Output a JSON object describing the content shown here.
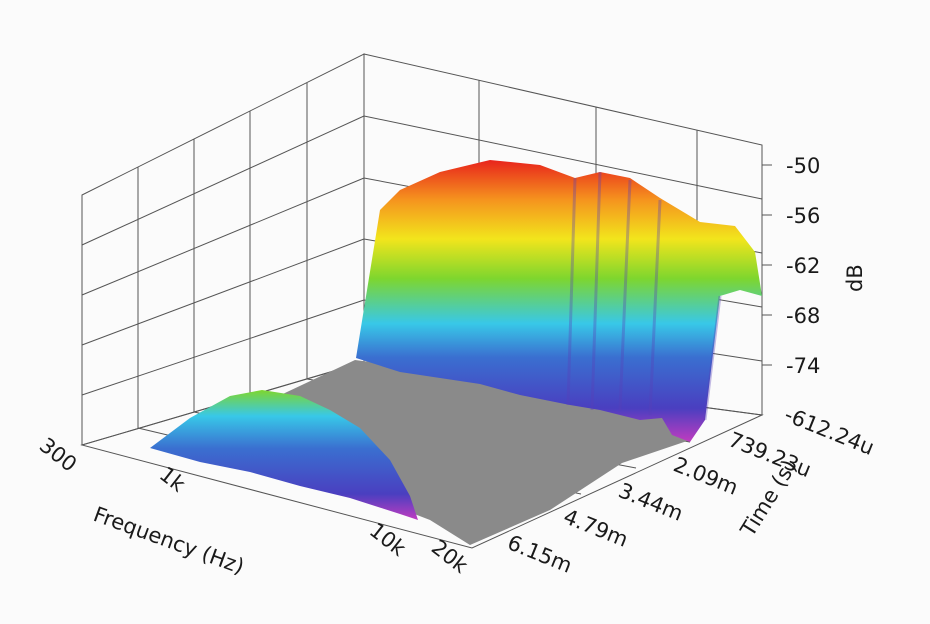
{
  "chart_data": {
    "type": "surface-3d",
    "title": "",
    "xlabel": "Frequency (Hz)",
    "ylabel": "Time (s)",
    "zlabel": "dB",
    "x_scale": "log",
    "x_ticks": [
      {
        "value": 300,
        "label": "300"
      },
      {
        "value": 1000,
        "label": "1k"
      },
      {
        "value": 10000,
        "label": "10k"
      },
      {
        "value": 20000,
        "label": "20k"
      }
    ],
    "y_ticks": [
      "-612.24u",
      "739.23u",
      "2.09m",
      "3.44m",
      "4.79m",
      "6.15m"
    ],
    "z_ticks": [
      "-50",
      "-56",
      "-62",
      "-68",
      "-74"
    ],
    "zlim": [
      -80,
      -50
    ],
    "grid": true,
    "floor_color": "#8a8a8a",
    "colormap": [
      "#c03cc0",
      "#3a4fc8",
      "#38c8e8",
      "#7ed62e",
      "#f2e51c",
      "#f5931e",
      "#e8241c"
    ],
    "surfaces": [
      {
        "freq_range": [
          400,
          9500
        ],
        "level_db_range": [
          -76,
          -62
        ]
      },
      {
        "freq_range": [
          2200,
          20000
        ],
        "level_db_range": [
          -78,
          -50
        ]
      }
    ]
  }
}
